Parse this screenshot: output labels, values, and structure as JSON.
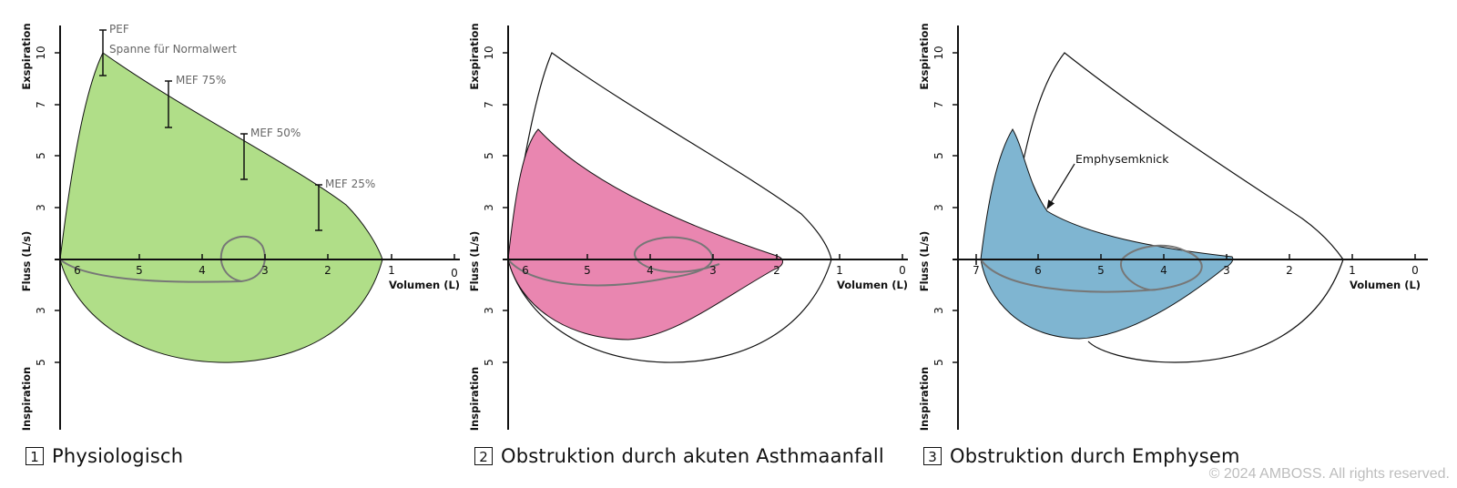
{
  "axes": {
    "y_label_top": "Exspiration",
    "y_label_mid": "Fluss (L/s)",
    "y_label_bottom": "Inspiration",
    "x_label": "Volumen (L)",
    "y_ticks_up": [
      "3",
      "5",
      "7",
      "10"
    ],
    "y_ticks_down": [
      "3",
      "5"
    ]
  },
  "panels": [
    {
      "number": "1",
      "title": "Physiologisch",
      "x_ticks": [
        "6",
        "5",
        "4",
        "3",
        "2",
        "1",
        "0"
      ],
      "fill_color": "#b0de88",
      "annotations": {
        "pef": "PEF",
        "range": "Spanne für Normalwert",
        "mef75": "MEF 75%",
        "mef50": "MEF 50%",
        "mef25": "MEF 25%"
      }
    },
    {
      "number": "2",
      "title": "Obstruktion durch akuten Asthmaanfall",
      "x_ticks": [
        "6",
        "5",
        "4",
        "3",
        "2",
        "1",
        "0"
      ],
      "fill_color": "#e986b0"
    },
    {
      "number": "3",
      "title": "Obstruktion durch Emphysem",
      "x_ticks": [
        "7",
        "6",
        "5",
        "4",
        "3",
        "2",
        "1",
        "0"
      ],
      "fill_color": "#7fb5d1",
      "annotation": "Emphysemknick"
    }
  ],
  "copyright": "© 2024 AMBOSS. All rights reserved."
}
